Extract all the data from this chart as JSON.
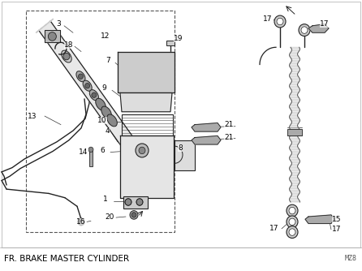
{
  "title": "FR. BRAKE MASTER CYLINDER",
  "watermark": "MZ8",
  "bg_color": "#f5f5f5",
  "lc": "#222222",
  "figure_width": 4.46,
  "figure_height": 3.34,
  "dpi": 100
}
